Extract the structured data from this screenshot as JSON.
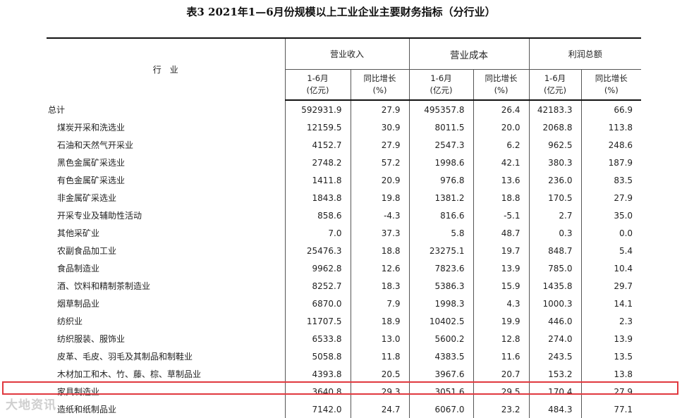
{
  "title": "表3  2021年1—6月份规模以上工业企业主要财务指标（分行业）",
  "header": {
    "industry": "行　业",
    "groups": [
      "营业收入",
      "营业成本",
      "利润总额"
    ],
    "period": "1-6月",
    "unit_amount": "(亿元)",
    "yoy": "同比增长",
    "unit_pct": "(%)"
  },
  "rows": [
    {
      "name": "总计",
      "rev": "592931.9",
      "rev_g": "27.9",
      "cost": "495357.8",
      "cost_g": "26.4",
      "profit": "42183.3",
      "profit_g": "66.9"
    },
    {
      "name": "煤炭开采和洗选业",
      "rev": "12159.5",
      "rev_g": "30.9",
      "cost": "8011.5",
      "cost_g": "20.0",
      "profit": "2068.8",
      "profit_g": "113.8"
    },
    {
      "name": "石油和天然气开采业",
      "rev": "4152.7",
      "rev_g": "27.9",
      "cost": "2547.3",
      "cost_g": "6.2",
      "profit": "962.5",
      "profit_g": "248.6"
    },
    {
      "name": "黑色金属矿采选业",
      "rev": "2748.2",
      "rev_g": "57.2",
      "cost": "1998.6",
      "cost_g": "42.1",
      "profit": "380.3",
      "profit_g": "187.9"
    },
    {
      "name": "有色金属矿采选业",
      "rev": "1411.8",
      "rev_g": "20.9",
      "cost": "976.8",
      "cost_g": "13.6",
      "profit": "236.0",
      "profit_g": "83.5"
    },
    {
      "name": "非金属矿采选业",
      "rev": "1843.8",
      "rev_g": "19.8",
      "cost": "1381.2",
      "cost_g": "18.8",
      "profit": "170.5",
      "profit_g": "27.9"
    },
    {
      "name": "开采专业及辅助性活动",
      "rev": "858.6",
      "rev_g": "-4.3",
      "cost": "816.6",
      "cost_g": "-5.1",
      "profit": "2.7",
      "profit_g": "35.0"
    },
    {
      "name": "其他采矿业",
      "rev": "7.0",
      "rev_g": "37.3",
      "cost": "5.8",
      "cost_g": "48.7",
      "profit": "0.3",
      "profit_g": "0.0"
    },
    {
      "name": "农副食品加工业",
      "rev": "25476.3",
      "rev_g": "18.8",
      "cost": "23275.1",
      "cost_g": "19.7",
      "profit": "848.7",
      "profit_g": "5.4"
    },
    {
      "name": "食品制造业",
      "rev": "9962.8",
      "rev_g": "12.6",
      "cost": "7823.6",
      "cost_g": "13.9",
      "profit": "785.0",
      "profit_g": "10.4"
    },
    {
      "name": "酒、饮料和精制茶制造业",
      "rev": "8252.7",
      "rev_g": "18.3",
      "cost": "5386.3",
      "cost_g": "15.9",
      "profit": "1435.8",
      "profit_g": "29.7"
    },
    {
      "name": "烟草制品业",
      "rev": "6870.0",
      "rev_g": "7.9",
      "cost": "1998.3",
      "cost_g": "4.3",
      "profit": "1000.3",
      "profit_g": "14.1"
    },
    {
      "name": "纺织业",
      "rev": "11707.5",
      "rev_g": "18.9",
      "cost": "10402.5",
      "cost_g": "19.9",
      "profit": "446.0",
      "profit_g": "2.3"
    },
    {
      "name": "纺织服装、服饰业",
      "rev": "6533.8",
      "rev_g": "13.0",
      "cost": "5600.2",
      "cost_g": "12.8",
      "profit": "274.0",
      "profit_g": "13.9"
    },
    {
      "name": "皮革、毛皮、羽毛及其制品和制鞋业",
      "rev": "5058.8",
      "rev_g": "11.8",
      "cost": "4383.5",
      "cost_g": "11.6",
      "profit": "243.5",
      "profit_g": "13.5"
    },
    {
      "name": "木材加工和木、竹、藤、棕、草制品业",
      "rev": "4393.8",
      "rev_g": "20.5",
      "cost": "3967.6",
      "cost_g": "20.7",
      "profit": "153.2",
      "profit_g": "13.8"
    },
    {
      "name": "家具制造业",
      "rev": "3640.8",
      "rev_g": "29.3",
      "cost": "3051.6",
      "cost_g": "29.5",
      "profit": "170.4",
      "profit_g": "27.9"
    },
    {
      "name": "造纸和纸制品业",
      "rev": "7142.0",
      "rev_g": "24.7",
      "cost": "6067.0",
      "cost_g": "23.2",
      "profit": "484.3",
      "profit_g": "77.1"
    }
  ],
  "highlight_color": "#e0393f",
  "watermark": "大地资讯"
}
